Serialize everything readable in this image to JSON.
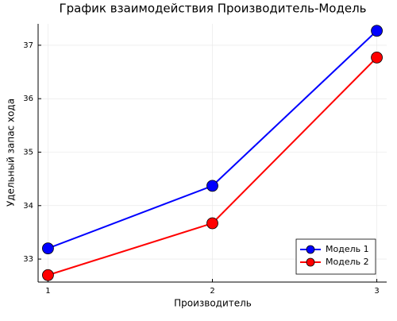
{
  "chart_data": {
    "type": "line",
    "title": "График взаимодействия Производитель-Модель",
    "x_label": "Производитель",
    "y_label": "Удельный запас хода",
    "x": [
      1,
      2,
      3
    ],
    "series": [
      {
        "name": "Модель 1",
        "color": "#0000ff",
        "values": [
          33.2,
          34.37,
          37.27
        ]
      },
      {
        "name": "Модель 2",
        "color": "#ff0000",
        "values": [
          32.7,
          33.67,
          36.77
        ]
      }
    ],
    "xlim": [
      0.94,
      3.06
    ],
    "xticks": [
      1,
      2,
      3
    ],
    "ylim": [
      32.57,
      37.4
    ],
    "yticks": [
      33,
      34,
      35,
      36,
      37
    ],
    "grid": true,
    "legend": "bottom-right"
  }
}
